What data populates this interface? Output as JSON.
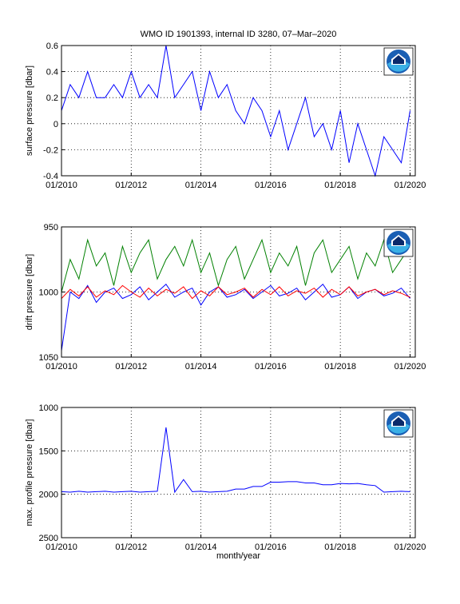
{
  "chart_data": [
    {
      "type": "line",
      "title": "WMO ID 1901393, internal ID 3280, 07–Mar–2020",
      "ylabel": "surface pressure [dbar]",
      "xlim": [
        2010,
        2020.15
      ],
      "xticks": [
        {
          "value": 2010,
          "label": "01/2010"
        },
        {
          "value": 2012,
          "label": "01/2012"
        },
        {
          "value": 2014,
          "label": "01/2014"
        },
        {
          "value": 2016,
          "label": "01/2016"
        },
        {
          "value": 2018,
          "label": "01/2018"
        },
        {
          "value": 2020,
          "label": "01/2020"
        }
      ],
      "ylim": [
        -0.4,
        0.6
      ],
      "yticks": [
        -0.4,
        -0.2,
        0,
        0.2,
        0.4,
        0.6
      ],
      "grid": true,
      "x": [
        2010,
        2010.25,
        2010.5,
        2010.75,
        2011,
        2011.25,
        2011.5,
        2011.75,
        2012,
        2012.25,
        2012.5,
        2012.75,
        2013,
        2013.25,
        2013.5,
        2013.75,
        2014,
        2014.25,
        2014.5,
        2014.75,
        2015,
        2015.25,
        2015.5,
        2015.75,
        2016,
        2016.25,
        2016.5,
        2016.75,
        2017,
        2017.25,
        2017.5,
        2017.75,
        2018,
        2018.25,
        2018.5,
        2018.75,
        2019,
        2019.25,
        2019.5,
        2019.75,
        2020
      ],
      "series": [
        {
          "color": "#0000ff",
          "values": [
            0.1,
            0.3,
            0.2,
            0.4,
            0.2,
            0.2,
            0.3,
            0.2,
            0.4,
            0.2,
            0.3,
            0.2,
            0.6,
            0.2,
            0.3,
            0.4,
            0.1,
            0.4,
            0.2,
            0.3,
            0.1,
            0.0,
            0.2,
            0.1,
            -0.1,
            0.1,
            -0.2,
            0.0,
            0.2,
            -0.1,
            0.0,
            -0.2,
            0.1,
            -0.3,
            0.0,
            -0.2,
            -0.4,
            -0.1,
            -0.2,
            -0.3,
            0.1
          ]
        }
      ]
    },
    {
      "type": "line",
      "ylabel": "drift pressure [dbar]",
      "y_reversed": true,
      "xlim": [
        2010,
        2020.15
      ],
      "xticks": [
        {
          "value": 2010,
          "label": "01/2010"
        },
        {
          "value": 2012,
          "label": "01/2012"
        },
        {
          "value": 2014,
          "label": "01/2014"
        },
        {
          "value": 2016,
          "label": "01/2016"
        },
        {
          "value": 2018,
          "label": "01/2018"
        },
        {
          "value": 2020,
          "label": "01/2020"
        }
      ],
      "ylim": [
        950,
        1050
      ],
      "yticks": [
        950,
        1000,
        1050
      ],
      "grid": true,
      "x": [
        2010,
        2010.25,
        2010.5,
        2010.75,
        2011,
        2011.25,
        2011.5,
        2011.75,
        2012,
        2012.25,
        2012.5,
        2012.75,
        2013,
        2013.25,
        2013.5,
        2013.75,
        2014,
        2014.25,
        2014.5,
        2014.75,
        2015,
        2015.25,
        2015.5,
        2015.75,
        2016,
        2016.25,
        2016.5,
        2016.75,
        2017,
        2017.25,
        2017.5,
        2017.75,
        2018,
        2018.25,
        2018.5,
        2018.75,
        2019,
        2019.25,
        2019.5,
        2019.75,
        2020
      ],
      "series": [
        {
          "color": "#008000",
          "values": [
            1000,
            975,
            990,
            960,
            980,
            970,
            995,
            965,
            985,
            970,
            960,
            990,
            975,
            965,
            980,
            960,
            985,
            970,
            995,
            975,
            965,
            990,
            975,
            960,
            985,
            970,
            980,
            965,
            995,
            970,
            960,
            985,
            975,
            965,
            990,
            970,
            980,
            960,
            985,
            975,
            965
          ]
        },
        {
          "color": "#0000ff",
          "values": [
            1045,
            1000,
            1005,
            995,
            1008,
            1000,
            997,
            1005,
            1002,
            996,
            1006,
            1000,
            994,
            1004,
            1000,
            997,
            1010,
            1000,
            996,
            1004,
            1002,
            998,
            1005,
            1000,
            995,
            1003,
            1001,
            997,
            1006,
            1000,
            994,
            1004,
            1002,
            996,
            1005,
            1000,
            998,
            1003,
            1001,
            997,
            1005
          ]
        },
        {
          "color": "#ff0000",
          "values": [
            1005,
            998,
            1003,
            996,
            1004,
            999,
            1002,
            995,
            1000,
            1004,
            997,
            1003,
            998,
            1001,
            996,
            1005,
            999,
            1003,
            996,
            1002,
            1000,
            997,
            1004,
            998,
            1002,
            996,
            1003,
            999,
            1001,
            997,
            1004,
            998,
            1002,
            996,
            1003,
            1000,
            998,
            1002,
            999,
            1001,
            1004
          ]
        }
      ]
    },
    {
      "type": "line",
      "ylabel": "max. profile pressure [dbar]",
      "xlabel": "month/year",
      "y_reversed": true,
      "xlim": [
        2010,
        2020.15
      ],
      "xticks": [
        {
          "value": 2010,
          "label": "01/2010"
        },
        {
          "value": 2012,
          "label": "01/2012"
        },
        {
          "value": 2014,
          "label": "01/2014"
        },
        {
          "value": 2016,
          "label": "01/2016"
        },
        {
          "value": 2018,
          "label": "01/2018"
        },
        {
          "value": 2020,
          "label": "01/2020"
        }
      ],
      "ylim": [
        1000,
        2500
      ],
      "yticks": [
        1000,
        1500,
        2000,
        2500
      ],
      "grid": true,
      "x": [
        2010,
        2010.25,
        2010.5,
        2010.75,
        2011,
        2011.25,
        2011.5,
        2011.75,
        2012,
        2012.25,
        2012.5,
        2012.75,
        2013,
        2013.25,
        2013.5,
        2013.75,
        2014,
        2014.25,
        2014.5,
        2014.75,
        2015,
        2015.25,
        2015.5,
        2015.75,
        2016,
        2016.25,
        2016.5,
        2016.75,
        2017,
        2017.25,
        2017.5,
        2017.75,
        2018,
        2018.25,
        2018.5,
        2018.75,
        2019,
        2019.25,
        2019.5,
        2019.75,
        2020
      ],
      "series": [
        {
          "color": "#0000ff",
          "values": [
            1970,
            1975,
            1965,
            1975,
            1970,
            1965,
            1975,
            1970,
            1965,
            1975,
            1970,
            1965,
            1230,
            1975,
            1830,
            1970,
            1965,
            1975,
            1970,
            1965,
            1940,
            1940,
            1910,
            1910,
            1860,
            1860,
            1855,
            1855,
            1870,
            1870,
            1890,
            1890,
            1875,
            1880,
            1875,
            1890,
            1900,
            1975,
            1970,
            1965,
            1970
          ]
        }
      ]
    }
  ]
}
